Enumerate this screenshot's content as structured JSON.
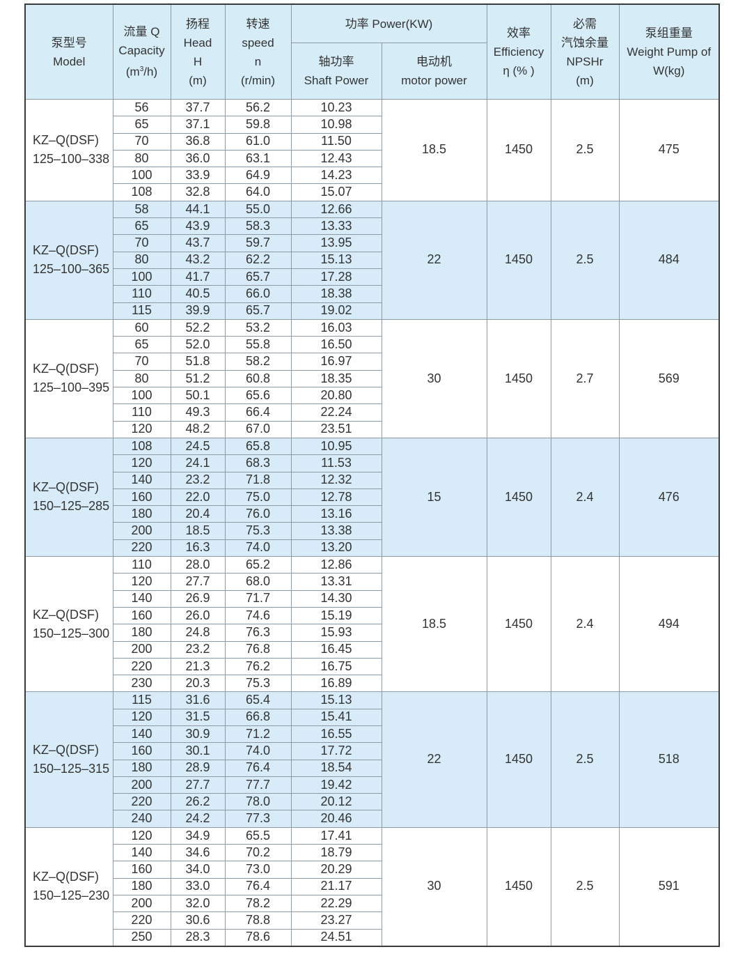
{
  "header": {
    "model": [
      "泵型号",
      "Model"
    ],
    "capacity": [
      "流量 Q",
      "Capacity",
      "(m",
      "3",
      "/h)"
    ],
    "head": [
      "扬程",
      "Head",
      "H",
      "(m)"
    ],
    "speed": [
      "转速",
      "speed",
      "n",
      "(r/min)"
    ],
    "power": "功率 Power(KW)",
    "shaft": [
      "轴功率",
      "Shaft Power"
    ],
    "motor": [
      "电动机",
      "motor power"
    ],
    "efficiency": [
      "效率",
      "Efficiency",
      "η (% )"
    ],
    "npshr": [
      "必需",
      "汽蚀余量",
      "NPSHr",
      "(m)"
    ],
    "weight": [
      "泵组重量",
      "Weight Pump of",
      "W(kg)"
    ]
  },
  "colors": {
    "header_bg": "#d6edf8",
    "shade_bg": "#d7ecf8",
    "border": "#8d9aa3"
  },
  "groups": [
    {
      "model": [
        "KZ–Q(DSF)",
        "125–100–338"
      ],
      "motor": "18.5",
      "efficiency": "1450",
      "npshr": "2.5",
      "weight": "475",
      "shaded": false,
      "rows": [
        [
          "56",
          "37.7",
          "56.2",
          "10.23"
        ],
        [
          "65",
          "37.1",
          "59.8",
          "10.98"
        ],
        [
          "70",
          "36.8",
          "61.0",
          "11.50"
        ],
        [
          "80",
          "36.0",
          "63.1",
          "12.43"
        ],
        [
          "100",
          "33.9",
          "64.9",
          "14.23"
        ],
        [
          "108",
          "32.8",
          "64.0",
          "15.07"
        ]
      ]
    },
    {
      "model": [
        "KZ–Q(DSF)",
        "125–100–365"
      ],
      "motor": "22",
      "efficiency": "1450",
      "npshr": "2.5",
      "weight": "484",
      "shaded": true,
      "rows": [
        [
          "58",
          "44.1",
          "55.0",
          "12.66"
        ],
        [
          "65",
          "43.9",
          "58.3",
          "13.33"
        ],
        [
          "70",
          "43.7",
          "59.7",
          "13.95"
        ],
        [
          "80",
          "43.2",
          "62.2",
          "15.13"
        ],
        [
          "100",
          "41.7",
          "65.7",
          "17.28"
        ],
        [
          "110",
          "40.5",
          "66.0",
          "18.38"
        ],
        [
          "115",
          "39.9",
          "65.7",
          "19.02"
        ]
      ]
    },
    {
      "model": [
        "KZ–Q(DSF)",
        "125–100–395"
      ],
      "motor": "30",
      "efficiency": "1450",
      "npshr": "2.7",
      "weight": "569",
      "shaded": false,
      "rows": [
        [
          "60",
          "52.2",
          "53.2",
          "16.03"
        ],
        [
          "65",
          "52.0",
          "55.8",
          "16.50"
        ],
        [
          "70",
          "51.8",
          "58.2",
          "16.97"
        ],
        [
          "80",
          "51.2",
          "60.8",
          "18.35"
        ],
        [
          "100",
          "50.1",
          "65.6",
          "20.80"
        ],
        [
          "110",
          "49.3",
          "66.4",
          "22.24"
        ],
        [
          "120",
          "48.2",
          "67.0",
          "23.51"
        ]
      ]
    },
    {
      "model": [
        "KZ–Q(DSF)",
        "150–125–285"
      ],
      "motor": "15",
      "efficiency": "1450",
      "npshr": "2.4",
      "weight": "476",
      "shaded": true,
      "rows": [
        [
          "108",
          "24.5",
          "65.8",
          "10.95"
        ],
        [
          "120",
          "24.1",
          "68.3",
          "11.53"
        ],
        [
          "140",
          "23.2",
          "71.8",
          "12.32"
        ],
        [
          "160",
          "22.0",
          "75.0",
          "12.78"
        ],
        [
          "180",
          "20.4",
          "76.0",
          "13.16"
        ],
        [
          "200",
          "18.5",
          "75.3",
          "13.38"
        ],
        [
          "220",
          "16.3",
          "74.0",
          "13.20"
        ]
      ]
    },
    {
      "model": [
        "KZ–Q(DSF)",
        "150–125–300"
      ],
      "motor": "18.5",
      "efficiency": "1450",
      "npshr": "2.4",
      "weight": "494",
      "shaded": false,
      "rows": [
        [
          "110",
          "28.0",
          "65.2",
          "12.86"
        ],
        [
          "120",
          "27.7",
          "68.0",
          "13.31"
        ],
        [
          "140",
          "26.9",
          "71.7",
          "14.30"
        ],
        [
          "160",
          "26.0",
          "74.6",
          "15.19"
        ],
        [
          "180",
          "24.8",
          "76.3",
          "15.93"
        ],
        [
          "200",
          "23.2",
          "76.8",
          "16.45"
        ],
        [
          "220",
          "21.3",
          "76.2",
          "16.75"
        ],
        [
          "230",
          "20.3",
          "75.3",
          "16.89"
        ]
      ]
    },
    {
      "model": [
        "KZ–Q(DSF)",
        "150–125–315"
      ],
      "motor": "22",
      "efficiency": "1450",
      "npshr": "2.5",
      "weight": "518",
      "shaded": true,
      "rows": [
        [
          "115",
          "31.6",
          "65.4",
          "15.13"
        ],
        [
          "120",
          "31.5",
          "66.8",
          "15.41"
        ],
        [
          "140",
          "30.9",
          "71.2",
          "16.55"
        ],
        [
          "160",
          "30.1",
          "74.0",
          "17.72"
        ],
        [
          "180",
          "28.9",
          "76.4",
          "18.54"
        ],
        [
          "200",
          "27.7",
          "77.7",
          "19.42"
        ],
        [
          "220",
          "26.2",
          "78.0",
          "20.12"
        ],
        [
          "240",
          "24.2",
          "77.3",
          "20.46"
        ]
      ]
    },
    {
      "model": [
        "KZ–Q(DSF)",
        "150–125–230"
      ],
      "motor": "30",
      "efficiency": "1450",
      "npshr": "2.5",
      "weight": "591",
      "shaded": false,
      "rows": [
        [
          "120",
          "34.9",
          "65.5",
          "17.41"
        ],
        [
          "140",
          "34.6",
          "70.2",
          "18.79"
        ],
        [
          "160",
          "34.0",
          "73.0",
          "20.29"
        ],
        [
          "180",
          "33.0",
          "76.4",
          "21.17"
        ],
        [
          "200",
          "32.0",
          "78.2",
          "22.29"
        ],
        [
          "220",
          "30.6",
          "78.8",
          "23.27"
        ],
        [
          "250",
          "28.3",
          "78.6",
          "24.51"
        ]
      ]
    }
  ]
}
